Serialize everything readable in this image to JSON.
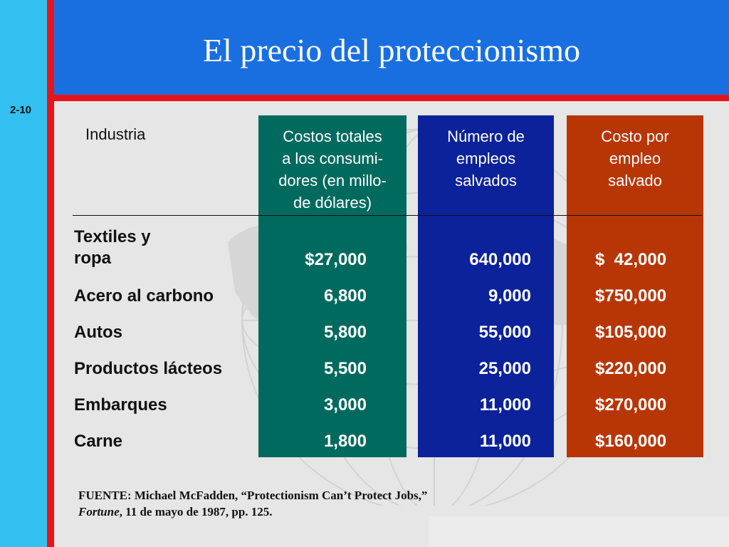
{
  "slide": {
    "title": "El precio del proteccionismo",
    "number": "2-10"
  },
  "colors": {
    "left_bar": "#33bff0",
    "accent_red": "#e8141c",
    "header_blue": "#1a6fe0",
    "column_green": "#016a5e",
    "column_blue": "#0c229a",
    "column_red": "#b83606"
  },
  "table": {
    "headers": {
      "industry": "Industria",
      "total_cost": [
        "Costos totales",
        "a los consumi-",
        "dores (en millo-",
        "de dólares)"
      ],
      "jobs_saved": [
        "Número de",
        "empleos",
        "salvados"
      ],
      "cost_per_job": [
        "Costo por",
        "empleo",
        "salvado"
      ]
    },
    "rows": [
      {
        "industry_lines": [
          "Textiles y",
          "ropa"
        ],
        "total_cost": "$27,000",
        "jobs_saved": "640,000",
        "cost_per_job": "$  42,000"
      },
      {
        "industry_lines": [
          "Acero al carbono"
        ],
        "total_cost": "6,800",
        "jobs_saved": "9,000",
        "cost_per_job": "$750,000"
      },
      {
        "industry_lines": [
          "Autos"
        ],
        "total_cost": "5,800",
        "jobs_saved": "55,000",
        "cost_per_job": "$105,000"
      },
      {
        "industry_lines": [
          "Productos lácteos"
        ],
        "total_cost": "5,500",
        "jobs_saved": "25,000",
        "cost_per_job": "$220,000"
      },
      {
        "industry_lines": [
          "Embarques"
        ],
        "total_cost": "3,000",
        "jobs_saved": "11,000",
        "cost_per_job": "$270,000"
      },
      {
        "industry_lines": [
          "Carne"
        ],
        "total_cost": "1,800",
        "jobs_saved": "11,000",
        "cost_per_job": "$160,000"
      }
    ]
  },
  "source": {
    "line1": "FUENTE: Michael McFadden, “Protectionism Can’t Protect Jobs,”",
    "line2_italic": "Fortune",
    "line2_rest": ", 11 de mayo de 1987, pp. 125."
  }
}
